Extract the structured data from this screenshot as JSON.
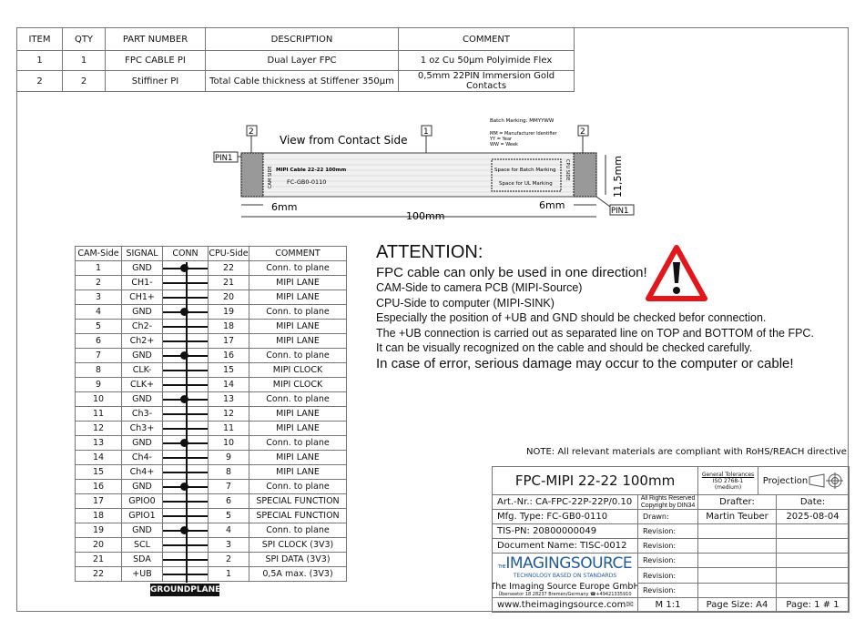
{
  "parts_table": {
    "headers": [
      "ITEM",
      "QTY",
      "PART NUMBER",
      "DESCRIPTION",
      "COMMENT"
    ],
    "rows": [
      [
        "1",
        "1",
        "FPC CABLE PI",
        "Dual Layer FPC",
        "1 oz Cu 50µm Polyimide Flex"
      ],
      [
        "2",
        "2",
        "Stiffiner PI",
        "Total Cable thickness at Stiffener 350µm",
        "0,5mm 22PIN Immersion Gold Contacts"
      ]
    ]
  },
  "drawing": {
    "view_label": "View from Contact Side",
    "callout_1": "1",
    "callout_2": "2",
    "pin1": "PIN1",
    "batch_marking": "Batch Marking:   MMYYWW",
    "legend_mm": "MM = Manufacturer Identifier",
    "legend_yy": "YY = Year",
    "legend_ww": "WW = Week",
    "cam_side": "CAM SIDE",
    "cpu_side": "CPU SIDE",
    "cable_text": "MIPI Cable 22-22 100mm",
    "type_text": "FC-GB0-0110",
    "batch_space": "Space for Batch Marking",
    "ul_space": "Space for UL Marking",
    "dim_stiffener": "6mm",
    "dim_length": "100mm",
    "dim_width": "11,5mm"
  },
  "pin_table": {
    "headers": [
      "CAM-Side",
      "SIGNAL",
      "CONN",
      "CPU-Side",
      "COMMENT"
    ],
    "rows": [
      {
        "cam": "1",
        "signal": "GND",
        "cpu": "22",
        "comment": "Conn. to plane",
        "ground": true
      },
      {
        "cam": "2",
        "signal": "CH1-",
        "cpu": "21",
        "comment": "MIPI LANE",
        "ground": false
      },
      {
        "cam": "3",
        "signal": "CH1+",
        "cpu": "20",
        "comment": "MIPI LANE",
        "ground": false
      },
      {
        "cam": "4",
        "signal": "GND",
        "cpu": "19",
        "comment": "Conn. to plane",
        "ground": true
      },
      {
        "cam": "5",
        "signal": "Ch2-",
        "cpu": "18",
        "comment": "MIPI LANE",
        "ground": false
      },
      {
        "cam": "6",
        "signal": "Ch2+",
        "cpu": "17",
        "comment": "MIPI LANE",
        "ground": false
      },
      {
        "cam": "7",
        "signal": "GND",
        "cpu": "16",
        "comment": "Conn. to plane",
        "ground": true
      },
      {
        "cam": "8",
        "signal": "CLK-",
        "cpu": "15",
        "comment": "MIPI CLOCK",
        "ground": false
      },
      {
        "cam": "9",
        "signal": "CLK+",
        "cpu": "14",
        "comment": "MIPI CLOCK",
        "ground": false
      },
      {
        "cam": "10",
        "signal": "GND",
        "cpu": "13",
        "comment": "Conn. to plane",
        "ground": true
      },
      {
        "cam": "11",
        "signal": "Ch3-",
        "cpu": "12",
        "comment": "MIPI LANE",
        "ground": false
      },
      {
        "cam": "12",
        "signal": "Ch3+",
        "cpu": "11",
        "comment": "MIPI LANE",
        "ground": false
      },
      {
        "cam": "13",
        "signal": "GND",
        "cpu": "10",
        "comment": "Conn. to plane",
        "ground": true
      },
      {
        "cam": "14",
        "signal": "Ch4-",
        "cpu": "9",
        "comment": "MIPI LANE",
        "ground": false
      },
      {
        "cam": "15",
        "signal": "Ch4+",
        "cpu": "8",
        "comment": "MIPI LANE",
        "ground": false
      },
      {
        "cam": "16",
        "signal": "GND",
        "cpu": "7",
        "comment": "Conn. to plane",
        "ground": true
      },
      {
        "cam": "17",
        "signal": "GPIO0",
        "cpu": "6",
        "comment": "SPECIAL FUNCTION",
        "ground": false
      },
      {
        "cam": "18",
        "signal": "GPIO1",
        "cpu": "5",
        "comment": "SPECIAL FUNCTION",
        "ground": false
      },
      {
        "cam": "19",
        "signal": "GND",
        "cpu": "4",
        "comment": "Conn. to plane",
        "ground": true
      },
      {
        "cam": "20",
        "signal": "SCL",
        "cpu": "3",
        "comment": "SPI CLOCK (3V3)",
        "ground": false
      },
      {
        "cam": "21",
        "signal": "SDA",
        "cpu": "2",
        "comment": "SPI DATA (3V3)",
        "ground": false
      },
      {
        "cam": "22",
        "signal": "+UB",
        "cpu": "1",
        "comment": "0,5A max. (3V3)",
        "ground": false
      }
    ],
    "groundplane": "GROUNDPLANE"
  },
  "attention": {
    "heading": "ATTENTION:",
    "line1": "FPC cable can only be used in one direction!",
    "line2": "CAM-Side to camera PCB (MIPI-Source)",
    "line3": "CPU-Side to computer (MIPI-SINK)",
    "line4": "Especially the position of +UB and GND should be checked befor connection.",
    "line5": "The +UB connection is carried out as separated line on TOP and BOTTOM of the FPC.",
    "line6": "It can be visually recognized on the cable and should be checked carefully.",
    "line7": "In case of error, serious damage may occur to the computer or cable!",
    "warning_color": "#e3161b"
  },
  "note": "NOTE: All relevant materials are compliant with RoHS/REACH directive",
  "title_block": {
    "title": "FPC-MIPI 22-22 100mm",
    "tol1": "General Tolerances",
    "tol2": "ISO 2768-1",
    "tol3": "(medium)",
    "projection": "Projection",
    "art": "Art.-Nr.: CA-FPC-22P-22P/0.10",
    "rights1": "All Rights Reserved",
    "rights2": "Copyright by DIN34",
    "drafter_label": "Drafter:",
    "date_label": "Date:",
    "mfg": "Mfg. Type: FC-GB0-0110",
    "drawn": "Drawn:",
    "drafter": "Martin Teuber",
    "date": "2025-08-04",
    "tis": "TIS-PN: 20800000049",
    "doc": "Document Name: TISC-0012",
    "revision": "Revision:",
    "logo_main": "IMAGINGSOURCE",
    "logo_the": "THE",
    "logo_sub": "TECHNOLOGY BASED ON STANDARDS",
    "company": "The Imaging Source Europe GmbH",
    "address": "Überseetor 18 28237 Bremen/Germany ☎+49421335910",
    "web": "www.theimagingsource.com",
    "scale": "M 1:1",
    "page_size": "Page Size: A4",
    "page": "Page:  1 # 1"
  }
}
